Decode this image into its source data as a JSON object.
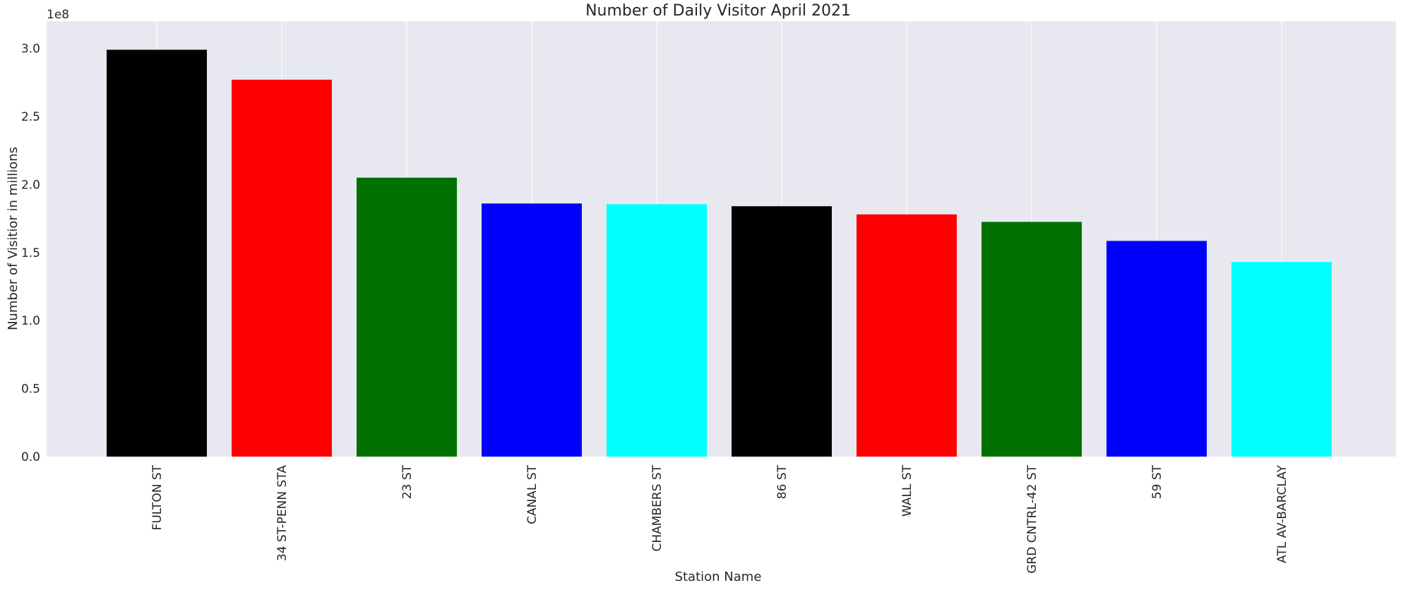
{
  "chart_data": {
    "type": "bar",
    "title": "Number of Daily Visitor April 2021",
    "xlabel": "Station Name",
    "ylabel": "Number of Visitior in millions",
    "y_offset_text": "1e8",
    "y_scale": 100000000,
    "ylim": [
      0,
      320000000
    ],
    "yticks": [
      0,
      50000000,
      100000000,
      150000000,
      200000000,
      250000000,
      300000000
    ],
    "ytick_labels": [
      "0.0",
      "0.5",
      "1.0",
      "1.5",
      "2.0",
      "2.5",
      "3.0"
    ],
    "grid": "vertical",
    "background": "#e8e8f0",
    "categories": [
      "FULTON ST",
      "34 ST-PENN STA",
      "23 ST",
      "CANAL ST",
      "CHAMBERS ST",
      "86 ST",
      "WALL ST",
      "GRD CNTRL-42 ST",
      "59 ST",
      "ATL AV-BARCLAY"
    ],
    "values": [
      299000000,
      277000000,
      205000000,
      186000000,
      185500000,
      184000000,
      178000000,
      172500000,
      158500000,
      143000000
    ],
    "colors": [
      "#000000",
      "#ff0000",
      "#007000",
      "#0000ff",
      "#00ffff",
      "#000000",
      "#ff0000",
      "#007000",
      "#0000ff",
      "#00ffff"
    ]
  }
}
